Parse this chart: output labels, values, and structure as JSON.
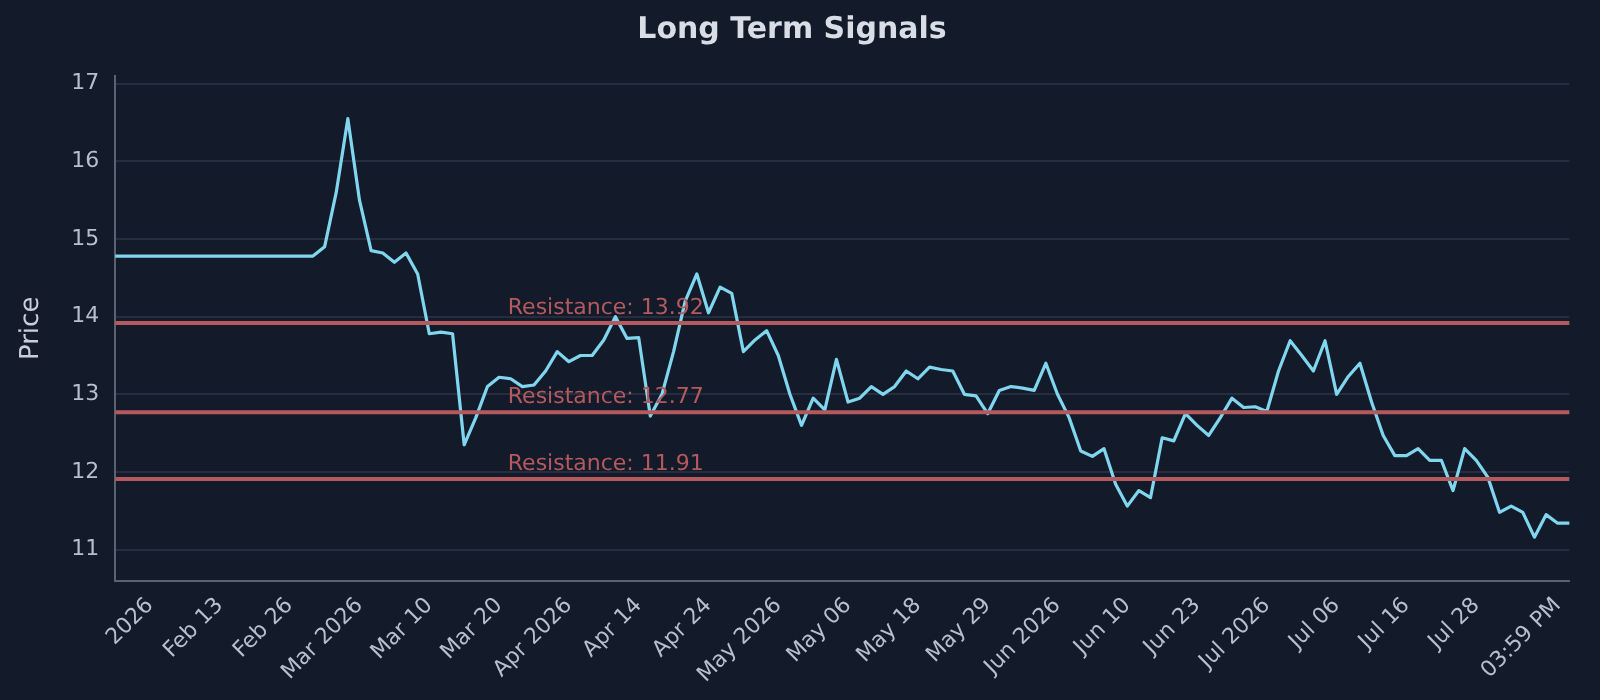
{
  "chart_data": {
    "type": "line",
    "title": "Long Term Signals",
    "ylabel": "Price",
    "categories": [
      null,
      null,
      null,
      "2026",
      null,
      null,
      null,
      null,
      null,
      "Feb 13",
      null,
      null,
      null,
      null,
      null,
      "Feb 26",
      null,
      null,
      null,
      null,
      null,
      "Mar 2026",
      null,
      null,
      null,
      null,
      null,
      "Mar 10",
      null,
      null,
      null,
      null,
      null,
      "Mar 20",
      null,
      null,
      null,
      null,
      null,
      "Apr 2026",
      null,
      null,
      null,
      null,
      null,
      "Apr 14",
      null,
      null,
      null,
      null,
      null,
      "Apr 24",
      null,
      null,
      null,
      null,
      null,
      "May 2026",
      null,
      null,
      null,
      null,
      null,
      "May 06",
      null,
      null,
      null,
      null,
      null,
      "May 18",
      null,
      null,
      null,
      null,
      null,
      "May 29",
      null,
      null,
      null,
      null,
      null,
      "Jun 2026",
      null,
      null,
      null,
      null,
      null,
      "Jun 10",
      null,
      null,
      null,
      null,
      null,
      "Jun 23",
      null,
      null,
      null,
      null,
      null,
      "Jul 2026",
      null,
      null,
      null,
      null,
      null,
      "Jul 06",
      null,
      null,
      null,
      null,
      null,
      "Jul 16",
      null,
      null,
      null,
      null,
      null,
      "Jul 28",
      null,
      null,
      null,
      null,
      null,
      null,
      "03:59 PM",
      null
    ],
    "series": [
      {
        "color": "#7fd6ee",
        "values": [
          14.78,
          14.78,
          14.78,
          14.78,
          14.78,
          14.78,
          14.78,
          14.78,
          14.78,
          14.78,
          14.78,
          14.78,
          14.78,
          14.78,
          14.78,
          14.78,
          14.78,
          14.78,
          14.9,
          15.6,
          16.55,
          15.5,
          14.85,
          14.82,
          14.7,
          14.82,
          14.55,
          13.78,
          13.8,
          13.78,
          12.35,
          12.7,
          13.1,
          13.22,
          13.2,
          13.1,
          13.12,
          13.3,
          13.55,
          13.42,
          13.5,
          13.5,
          13.7,
          14.0,
          13.72,
          13.73,
          12.72,
          13.0,
          13.55,
          14.2,
          14.55,
          14.05,
          14.38,
          14.3,
          13.55,
          13.7,
          13.82,
          13.5,
          13.0,
          12.6,
          12.95,
          12.8,
          13.45,
          12.9,
          12.95,
          13.1,
          13.0,
          13.1,
          13.3,
          13.2,
          13.35,
          13.32,
          13.3,
          13.0,
          12.98,
          12.75,
          13.05,
          13.1,
          13.08,
          13.05,
          13.4,
          13.0,
          12.7,
          12.27,
          12.2,
          12.3,
          11.84,
          11.56,
          11.76,
          11.67,
          12.44,
          12.4,
          12.75,
          12.6,
          12.47,
          12.7,
          12.95,
          12.83,
          12.84,
          12.78,
          13.3,
          13.69,
          13.5,
          13.3,
          13.69,
          13.0,
          13.23,
          13.4,
          12.9,
          12.47,
          12.21,
          12.21,
          12.3,
          12.15,
          12.15,
          11.76,
          12.3,
          12.15,
          11.93,
          11.48,
          11.56,
          11.48,
          11.16,
          11.45,
          11.34,
          11.34
        ]
      }
    ],
    "ylim": [
      10.6,
      17.1
    ],
    "yticks": [
      11,
      12,
      13,
      14,
      15,
      16,
      17
    ],
    "grid": "y",
    "legend": false,
    "marker": "none",
    "line_style": "solid",
    "ref_lines": [
      {
        "axis": "y",
        "value": 13.92,
        "label": "Resistance: 13.92",
        "color": "#b45a5e"
      },
      {
        "axis": "y",
        "value": 12.77,
        "label": "Resistance: 12.77",
        "color": "#b45a5e"
      },
      {
        "axis": "y",
        "value": 11.91,
        "label": "Resistance: 11.91",
        "color": "#b45a5e"
      }
    ]
  }
}
